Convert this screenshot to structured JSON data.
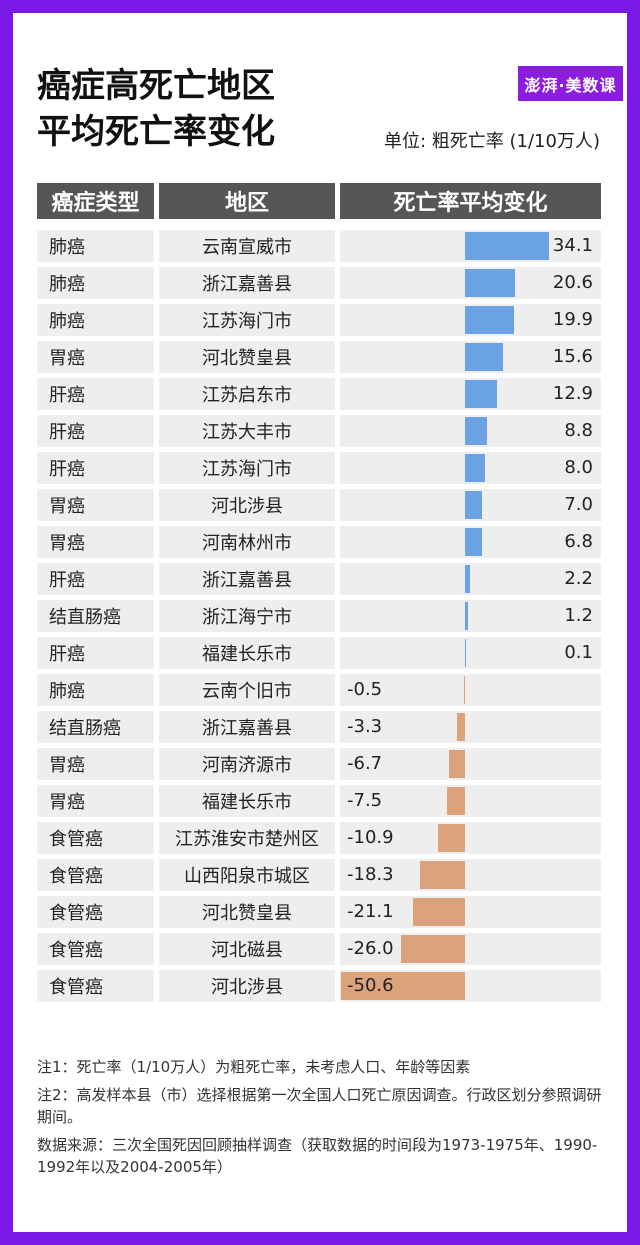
{
  "title": {
    "line1": "癌症高死亡地区",
    "line2": "平均死亡率变化"
  },
  "logo": "澎湃·美数课",
  "unit": "单位: 粗死亡率 (1/10万人)",
  "headers": {
    "type": "癌症类型",
    "region": "地区",
    "change": "死亡率平均变化"
  },
  "colors": {
    "positive": "#6aa2e3",
    "negative": "#dba27c",
    "frame": "#7b19e6"
  },
  "chart_data": {
    "type": "bar",
    "orientation": "horizontal",
    "rows": [
      {
        "type": "肺癌",
        "region": "云南宣威市",
        "value": 34.1,
        "label": "34.1"
      },
      {
        "type": "肺癌",
        "region": "浙江嘉善县",
        "value": 20.6,
        "label": "20.6"
      },
      {
        "type": "肺癌",
        "region": "江苏海门市",
        "value": 19.9,
        "label": "19.9"
      },
      {
        "type": "胃癌",
        "region": "河北赞皇县",
        "value": 15.6,
        "label": "15.6"
      },
      {
        "type": "肝癌",
        "region": "江苏启东市",
        "value": 12.9,
        "label": "12.9"
      },
      {
        "type": "肝癌",
        "region": "江苏大丰市",
        "value": 8.8,
        "label": "8.8"
      },
      {
        "type": "肝癌",
        "region": "江苏海门市",
        "value": 8.0,
        "label": "8.0"
      },
      {
        "type": "胃癌",
        "region": "河北涉县",
        "value": 7.0,
        "label": "7.0"
      },
      {
        "type": "胃癌",
        "region": "河南林州市",
        "value": 6.8,
        "label": "6.8"
      },
      {
        "type": "肝癌",
        "region": "浙江嘉善县",
        "value": 2.2,
        "label": "2.2"
      },
      {
        "type": "结直肠癌",
        "region": "浙江海宁市",
        "value": 1.2,
        "label": "1.2"
      },
      {
        "type": "肝癌",
        "region": "福建长乐市",
        "value": 0.1,
        "label": "0.1"
      },
      {
        "type": "肺癌",
        "region": "云南个旧市",
        "value": -0.5,
        "label": "-0.5"
      },
      {
        "type": "结直肠癌",
        "region": "浙江嘉善县",
        "value": -3.3,
        "label": "-3.3"
      },
      {
        "type": "胃癌",
        "region": "河南济源市",
        "value": -6.7,
        "label": "-6.7"
      },
      {
        "type": "胃癌",
        "region": "福建长乐市",
        "value": -7.5,
        "label": "-7.5"
      },
      {
        "type": "食管癌",
        "region": "江苏淮安市楚州区",
        "value": -10.9,
        "label": "-10.9"
      },
      {
        "type": "食管癌",
        "region": "山西阳泉市城区",
        "value": -18.3,
        "label": "-18.3"
      },
      {
        "type": "食管癌",
        "region": "河北赞皇县",
        "value": -21.1,
        "label": "-21.1"
      },
      {
        "type": "食管癌",
        "region": "河北磁县",
        "value": -26.0,
        "label": "-26.0"
      },
      {
        "type": "食管癌",
        "region": "河北涉县",
        "value": -50.6,
        "label": "-50.6"
      }
    ]
  },
  "notes": [
    "注1：死亡率（1/10万人）为粗死亡率，未考虑人口、年龄等因素",
    "注2：高发样本县（市）选择根据第一次全国人口死亡原因调查。行政区划分参照调研期间。",
    "数据来源：三次全国死因回顾抽样调查（获取数据的时间段为1973-1975年、1990-1992年以及2004-2005年）"
  ]
}
